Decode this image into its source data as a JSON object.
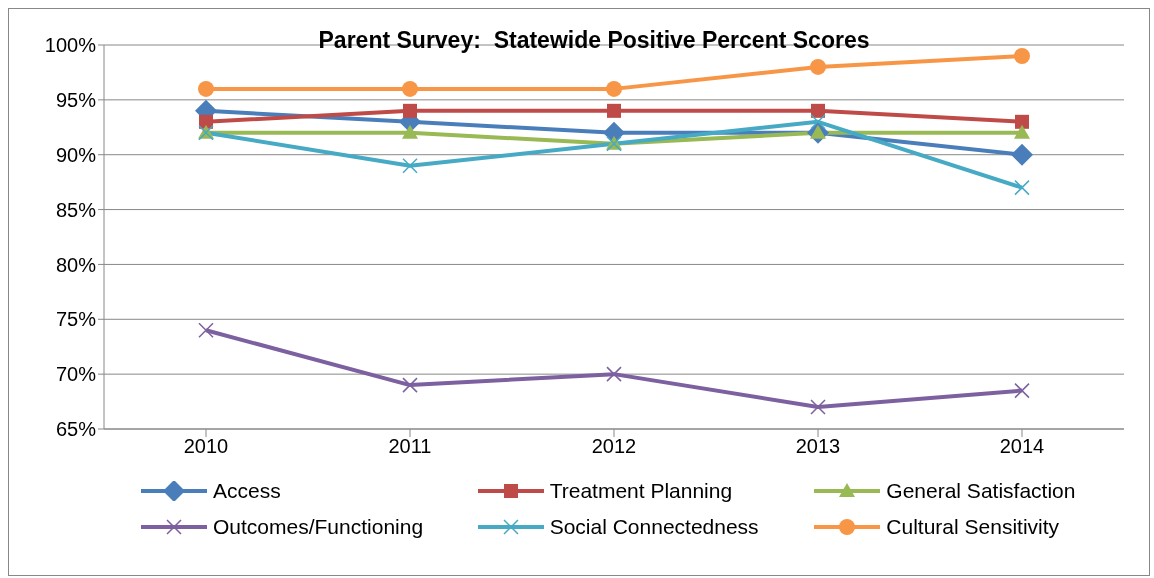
{
  "chart_data": {
    "type": "line",
    "title": "Parent Survey:  Statewide Positive Percent Scores",
    "categories": [
      "2010",
      "2011",
      "2012",
      "2013",
      "2014"
    ],
    "series": [
      {
        "name": "Access",
        "color": "#4a7ebb",
        "marker": "diamond",
        "values": [
          94,
          93,
          92,
          92,
          90
        ]
      },
      {
        "name": "Treatment Planning",
        "color": "#be4b48",
        "marker": "square",
        "values": [
          93,
          94,
          94,
          94,
          93
        ]
      },
      {
        "name": "General Satisfaction",
        "color": "#98b954",
        "marker": "triangle",
        "values": [
          92,
          92,
          91,
          92,
          92
        ]
      },
      {
        "name": "Outcomes/Functioning",
        "color": "#7d60a0",
        "marker": "cross",
        "values": [
          74,
          69,
          70,
          67,
          68.5
        ]
      },
      {
        "name": "Social Connectedness",
        "color": "#46aac5",
        "marker": "cross",
        "values": [
          92,
          89,
          91,
          93,
          87
        ]
      },
      {
        "name": "Cultural Sensitivity",
        "color": "#f79646",
        "marker": "circle",
        "values": [
          96,
          96,
          96,
          98,
          99
        ]
      }
    ],
    "ylim": [
      65,
      100
    ],
    "yticks": [
      {
        "value": 65,
        "label": "65%"
      },
      {
        "value": 70,
        "label": "70%"
      },
      {
        "value": 75,
        "label": "75%"
      },
      {
        "value": 80,
        "label": "80%"
      },
      {
        "value": 85,
        "label": "85%"
      },
      {
        "value": 90,
        "label": "90%"
      },
      {
        "value": 95,
        "label": "95%"
      },
      {
        "value": 100,
        "label": "100%"
      }
    ],
    "grid": "y",
    "legend": "bottom",
    "line_style": "solid"
  }
}
